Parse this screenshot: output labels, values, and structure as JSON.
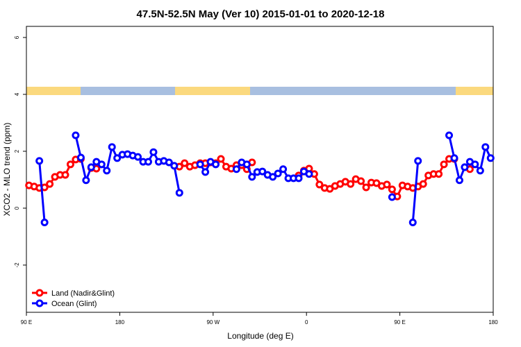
{
  "chart_data": {
    "type": "line",
    "title": "47.5N-52.5N May (Ver 10)   2015-01-01 to 2020-12-18",
    "x_label": "Longitude (deg E)",
    "y_label": "XCO2 - MLO trend (ppm)",
    "x": [
      92.5,
      97.5,
      102.5,
      107.5,
      112.5,
      117.5,
      122.5,
      127.5,
      132.5,
      137.5,
      142.5,
      147.5,
      152.5,
      157.5,
      162.5,
      167.5,
      172.5,
      177.5,
      182.5,
      187.5,
      192.5,
      197.5,
      202.5,
      207.5,
      212.5,
      217.5,
      222.5,
      227.5,
      232.5,
      237.5,
      242.5,
      247.5,
      252.5,
      257.5,
      262.5,
      267.5,
      272.5,
      277.5,
      282.5,
      287.5,
      292.5,
      297.5,
      302.5,
      307.5,
      312.5,
      317.5,
      322.5,
      327.5,
      332.5,
      337.5,
      342.5,
      347.5,
      352.5,
      357.5,
      362.5,
      367.5,
      372.5,
      377.5,
      382.5,
      387.5,
      392.5,
      397.5,
      402.5,
      407.5,
      412.5,
      417.5,
      422.5,
      427.5,
      432.5,
      437.5,
      442.5,
      447.5,
      452.5,
      457.5,
      462.5,
      467.5,
      472.5,
      477.5,
      482.5,
      487.5,
      492.5,
      497.5,
      502.5,
      507.5,
      512.5,
      517.5,
      522.5,
      527.5,
      532.5,
      537.5
    ],
    "series": [
      {
        "name": "Land (Nadir&Glint)",
        "color": "#ff0000",
        "values": [
          0.8,
          0.76,
          0.71,
          0.73,
          0.85,
          1.1,
          1.17,
          1.17,
          1.54,
          1.71,
          1.73,
          null,
          1.41,
          1.39,
          null,
          null,
          null,
          null,
          null,
          null,
          null,
          null,
          null,
          null,
          null,
          null,
          null,
          null,
          null,
          1.46,
          1.58,
          1.46,
          1.51,
          1.58,
          1.58,
          1.61,
          1.58,
          1.73,
          1.46,
          1.39,
          1.51,
          1.51,
          1.37,
          1.61,
          null,
          null,
          null,
          null,
          null,
          null,
          null,
          null,
          1.15,
          1.32,
          1.39,
          1.2,
          0.83,
          0.71,
          0.68,
          0.78,
          0.85,
          0.93,
          0.85,
          1.02,
          0.95,
          0.73,
          0.9,
          0.88,
          0.78,
          0.83,
          0.66,
          0.41,
          0.8,
          0.76,
          0.71,
          0.76,
          0.85,
          1.15,
          1.2,
          1.2,
          1.54,
          1.73,
          1.73,
          null,
          null,
          1.37,
          null,
          null,
          null,
          null
        ]
      },
      {
        "name": "Ocean (Glint)",
        "color": "#0000ff",
        "values": [
          null,
          null,
          1.66,
          -0.5,
          null,
          null,
          null,
          null,
          null,
          2.56,
          1.78,
          0.98,
          1.44,
          1.63,
          1.54,
          1.32,
          2.15,
          1.76,
          1.88,
          1.9,
          1.85,
          1.8,
          1.63,
          1.63,
          1.97,
          1.63,
          1.66,
          1.61,
          1.49,
          0.54,
          null,
          null,
          null,
          1.54,
          1.27,
          1.63,
          1.54,
          null,
          null,
          null,
          1.37,
          1.61,
          1.54,
          1.1,
          1.27,
          1.29,
          1.17,
          1.1,
          1.22,
          1.37,
          1.05,
          1.05,
          1.05,
          1.29,
          1.2,
          null,
          null,
          null,
          null,
          null,
          null,
          null,
          null,
          null,
          null,
          null,
          null,
          null,
          null,
          null,
          0.39,
          null,
          null,
          null,
          -0.5,
          1.66,
          null,
          null,
          null,
          null,
          null,
          2.56,
          1.76,
          0.98,
          1.44,
          1.63,
          1.54,
          1.32,
          2.15,
          1.76
        ]
      }
    ],
    "xlim": [
      90,
      540
    ],
    "xticks": [
      {
        "value": 90,
        "label": "90 E"
      },
      180,
      {
        "value": 270,
        "label": "90 W"
      },
      {
        "value": 360,
        "label": "0"
      },
      {
        "value": 450,
        "label": "90 E"
      },
      {
        "value": 540,
        "label": "180"
      }
    ],
    "ylim": [
      -3.66,
      6.39
    ],
    "yticks": [
      -2,
      0,
      2,
      4,
      6
    ],
    "legend": "bottom-left",
    "grid": false
  }
}
